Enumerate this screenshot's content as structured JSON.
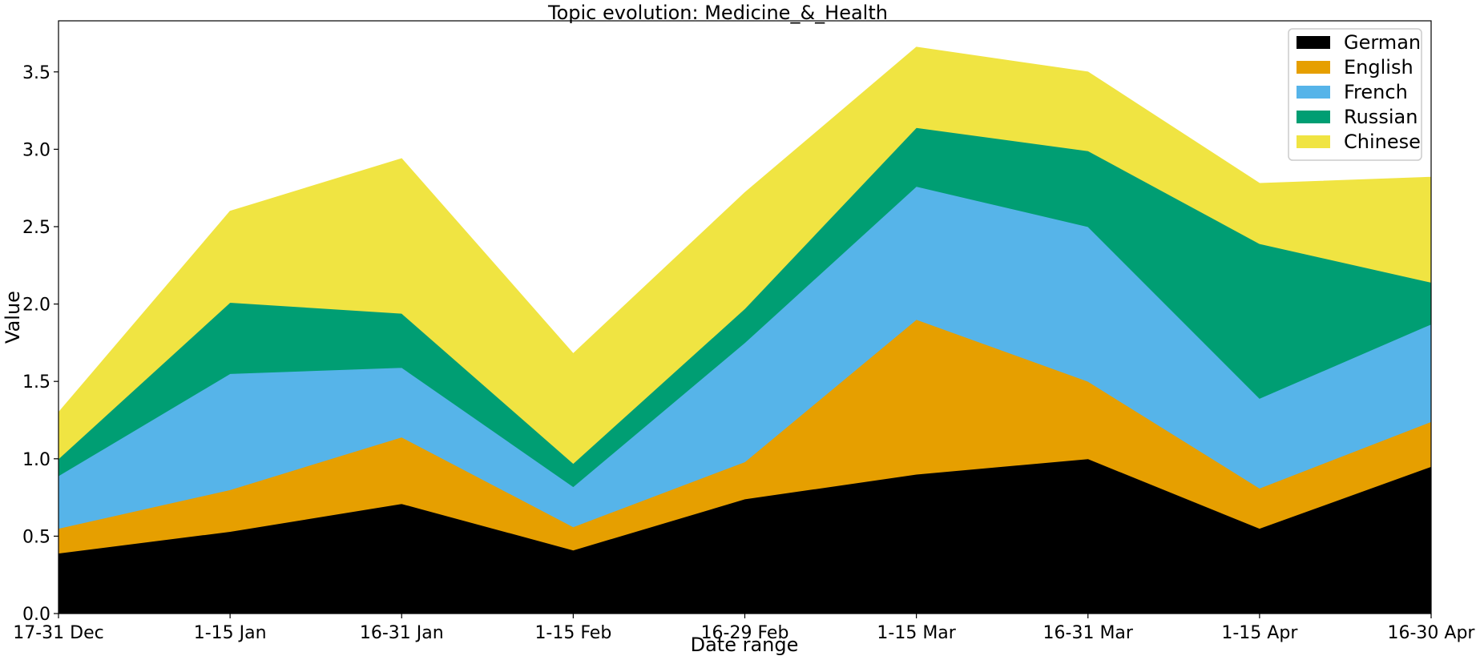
{
  "chart_data": {
    "type": "area",
    "stacked": true,
    "title": "Topic evolution: Medicine_&_Health",
    "xlabel": "Date range",
    "ylabel": "Value",
    "categories": [
      "17-31 Dec",
      "1-15 Jan",
      "16-31 Jan",
      "1-15 Feb",
      "16-29 Feb",
      "1-15 Mar",
      "16-31 Mar",
      "1-15 Apr",
      "16-30 Apr"
    ],
    "ylim": [
      0,
      3.83
    ],
    "yticks": [
      "0.0",
      "0.5",
      "1.0",
      "1.5",
      "2.0",
      "2.5",
      "3.0",
      "3.5"
    ],
    "grid": false,
    "legend_position": "top-right",
    "series": [
      {
        "name": "German",
        "color": "#000000",
        "values": [
          0.39,
          0.53,
          0.71,
          0.41,
          0.74,
          0.9,
          1.0,
          0.55,
          0.95
        ]
      },
      {
        "name": "English",
        "color": "#E69F00",
        "values": [
          0.16,
          0.27,
          0.43,
          0.15,
          0.24,
          1.0,
          0.5,
          0.26,
          0.29
        ]
      },
      {
        "name": "French",
        "color": "#56B4E9",
        "values": [
          0.34,
          0.75,
          0.45,
          0.26,
          0.77,
          0.86,
          1.0,
          0.58,
          0.63
        ]
      },
      {
        "name": "Russian",
        "color": "#009E73",
        "values": [
          0.11,
          0.46,
          0.35,
          0.15,
          0.22,
          0.38,
          0.49,
          1.0,
          0.27
        ]
      },
      {
        "name": "Chinese",
        "color": "#F0E442",
        "values": [
          0.3,
          0.59,
          1.0,
          0.71,
          0.75,
          0.52,
          0.51,
          0.39,
          0.68
        ]
      }
    ]
  }
}
